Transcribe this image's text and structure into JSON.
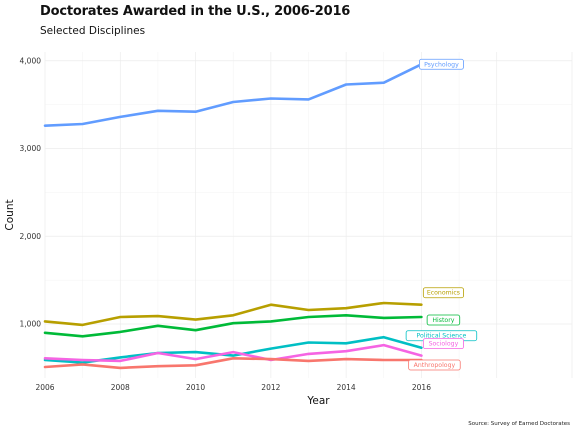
{
  "chart_data": {
    "type": "line",
    "title": "Doctorates Awarded in the U.S., 2006-2016",
    "subtitle": "Selected Disciplines",
    "xlabel": "Year",
    "ylabel": "Count",
    "caption": "Source: Survey of Earned Doctorates",
    "xlim": [
      2006,
      2020
    ],
    "ylim": [
      385,
      4100
    ],
    "xticks": [
      2006,
      2008,
      2010,
      2012,
      2014,
      2016
    ],
    "xtick_labels": [
      "2006",
      "2008",
      "2010",
      "2012",
      "2014",
      "2016"
    ],
    "yticks": [
      1000,
      2000,
      3000,
      4000
    ],
    "ytick_labels": [
      "1,000",
      "2,000",
      "3,000",
      "4,000"
    ],
    "grid": true,
    "legend": "direct labels at line ends",
    "x": [
      2006,
      2007,
      2008,
      2009,
      2010,
      2011,
      2012,
      2013,
      2014,
      2015,
      2016
    ],
    "series": [
      {
        "name": "Psychology",
        "color": "#619CFF",
        "values": [
          3260,
          3280,
          3360,
          3430,
          3420,
          3530,
          3570,
          3560,
          3730,
          3750,
          3960
        ]
      },
      {
        "name": "Economics",
        "color": "#B79F00",
        "values": [
          1030,
          990,
          1080,
          1090,
          1050,
          1100,
          1220,
          1160,
          1180,
          1240,
          1220
        ]
      },
      {
        "name": "History",
        "color": "#00BA38",
        "values": [
          900,
          860,
          910,
          980,
          930,
          1010,
          1030,
          1080,
          1100,
          1070,
          1080
        ]
      },
      {
        "name": "Political Science",
        "color": "#00BFC4",
        "values": [
          590,
          560,
          620,
          670,
          680,
          640,
          720,
          790,
          780,
          850,
          730
        ]
      },
      {
        "name": "Sociology",
        "color": "#F564E3",
        "values": [
          610,
          590,
          580,
          670,
          600,
          680,
          590,
          660,
          690,
          760,
          640
        ]
      },
      {
        "name": "Anthropology",
        "color": "#F8766D",
        "values": [
          510,
          540,
          500,
          520,
          530,
          610,
          600,
          580,
          600,
          590,
          590
        ]
      }
    ]
  }
}
